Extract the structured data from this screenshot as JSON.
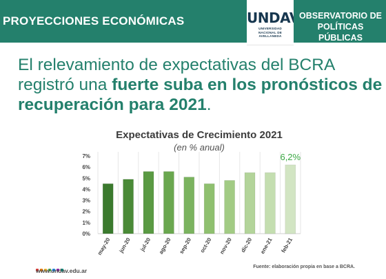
{
  "header": {
    "section_title": "PROYECCIONES ECONÓMICAS",
    "logo_mark": "UNDAV",
    "logo_subtitle": [
      "UNIVERSIDAD",
      "NACIONAL DE",
      "AVELLANEDA"
    ],
    "observatory_line1": "OBSERVATORIO DE",
    "observatory_line2": "POLÍTICAS PÚBLICAS"
  },
  "headline": {
    "part1": "El relevamiento de expectativas del BCRA registró una ",
    "bold": "fuerte suba en los pronósticos de recuperación para 2021",
    "part2": "."
  },
  "chart_data": {
    "type": "bar",
    "title": "Expectativas de Crecimiento 2021",
    "subtitle": "(en % anual)",
    "categories": [
      "may-20",
      "jun-20",
      "jul-20",
      "ago-20",
      "sep-20",
      "oct-20",
      "nov-20",
      "dic-20",
      "ene-21",
      "feb-21"
    ],
    "values": [
      4.5,
      4.9,
      5.6,
      5.6,
      5.1,
      4.5,
      4.8,
      5.5,
      5.5,
      6.2
    ],
    "highlight_label": "6,2%",
    "highlight_index": 9,
    "y_ticks": [
      "0%",
      "1%",
      "2%",
      "3%",
      "4%",
      "5%",
      "6%",
      "7%"
    ],
    "ylim": [
      0,
      7
    ],
    "grid": "vertical",
    "colors": [
      "#3b7a2e",
      "#4a8a37",
      "#5a9a43",
      "#6aa74f",
      "#7bb35f",
      "#8fc06f",
      "#a2cb84",
      "#b3d49a",
      "#c4deb0",
      "#d2e5c3"
    ],
    "highlight_color": "#3aa843"
  },
  "footer": {
    "url": "www.undav.edu.ar",
    "source": "Fuente: elaboración propia en base a BCRA.",
    "dot_colors": [
      "#e53935",
      "#f57c00",
      "#fbc02d",
      "#43a047",
      "#1e88e5",
      "#8e24aa",
      "#00897b"
    ]
  }
}
